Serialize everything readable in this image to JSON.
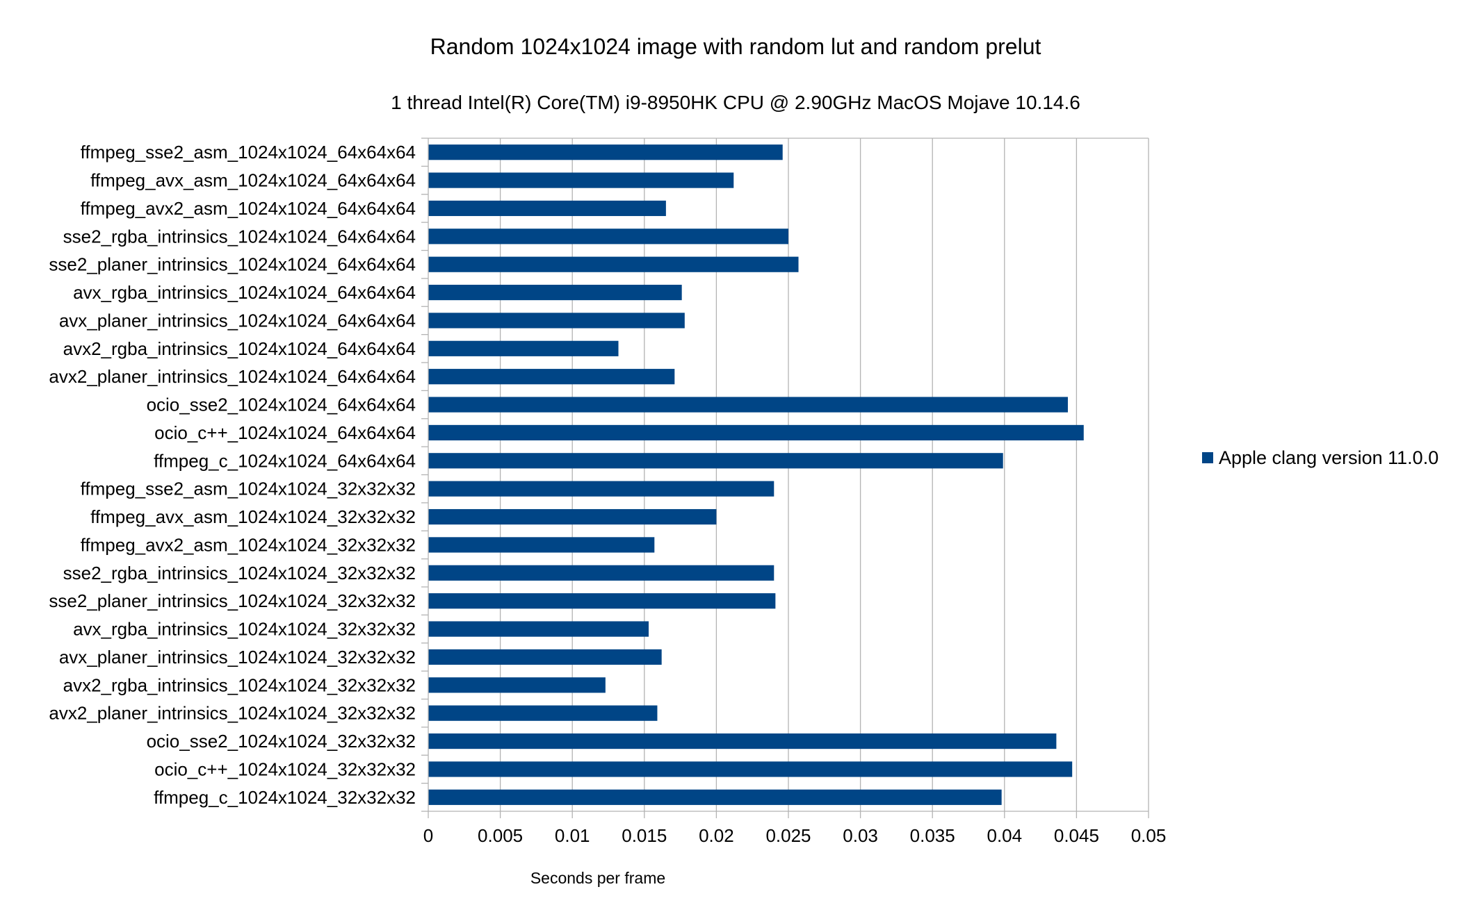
{
  "chart_data": {
    "type": "bar",
    "orientation": "horizontal",
    "title": "Random 1024x1024 image with random lut and random prelut",
    "subtitle": "1 thread Intel(R) Core(TM) i9-8950HK CPU @ 2.90GHz MacOS Mojave 10.14.6",
    "xlabel": "Seconds per frame",
    "ylabel": "",
    "xlim": [
      0,
      0.05
    ],
    "xticks": [
      "0",
      "0.005",
      "0.01",
      "0.015",
      "0.02",
      "0.025",
      "0.03",
      "0.035",
      "0.04",
      "0.045",
      "0.05"
    ],
    "grid": true,
    "legend_position": "right",
    "colors": {
      "series": "#004586",
      "grid": "#b3b3b3",
      "axis": "#b3b3b3"
    },
    "categories": [
      "ffmpeg_sse2_asm_1024x1024_64x64x64",
      "ffmpeg_avx_asm_1024x1024_64x64x64",
      "ffmpeg_avx2_asm_1024x1024_64x64x64",
      "sse2_rgba_intrinsics_1024x1024_64x64x64",
      "sse2_planer_intrinsics_1024x1024_64x64x64",
      "avx_rgba_intrinsics_1024x1024_64x64x64",
      "avx_planer_intrinsics_1024x1024_64x64x64",
      "avx2_rgba_intrinsics_1024x1024_64x64x64",
      "avx2_planer_intrinsics_1024x1024_64x64x64",
      "ocio_sse2_1024x1024_64x64x64",
      "ocio_c++_1024x1024_64x64x64",
      "ffmpeg_c_1024x1024_64x64x64",
      "ffmpeg_sse2_asm_1024x1024_32x32x32",
      "ffmpeg_avx_asm_1024x1024_32x32x32",
      "ffmpeg_avx2_asm_1024x1024_32x32x32",
      "sse2_rgba_intrinsics_1024x1024_32x32x32",
      "sse2_planer_intrinsics_1024x1024_32x32x32",
      "avx_rgba_intrinsics_1024x1024_32x32x32",
      "avx_planer_intrinsics_1024x1024_32x32x32",
      "avx2_rgba_intrinsics_1024x1024_32x32x32",
      "avx2_planer_intrinsics_1024x1024_32x32x32",
      "ocio_sse2_1024x1024_32x32x32",
      "ocio_c++_1024x1024_32x32x32",
      "ffmpeg_c_1024x1024_32x32x32"
    ],
    "series": [
      {
        "name": "Apple clang version 11.0.0",
        "values": [
          0.0246,
          0.0212,
          0.0165,
          0.025,
          0.0257,
          0.0176,
          0.0178,
          0.0132,
          0.0171,
          0.0444,
          0.0455,
          0.0399,
          0.024,
          0.02,
          0.0157,
          0.024,
          0.0241,
          0.0153,
          0.0162,
          0.0123,
          0.0159,
          0.0436,
          0.0447,
          0.0398
        ]
      }
    ]
  }
}
